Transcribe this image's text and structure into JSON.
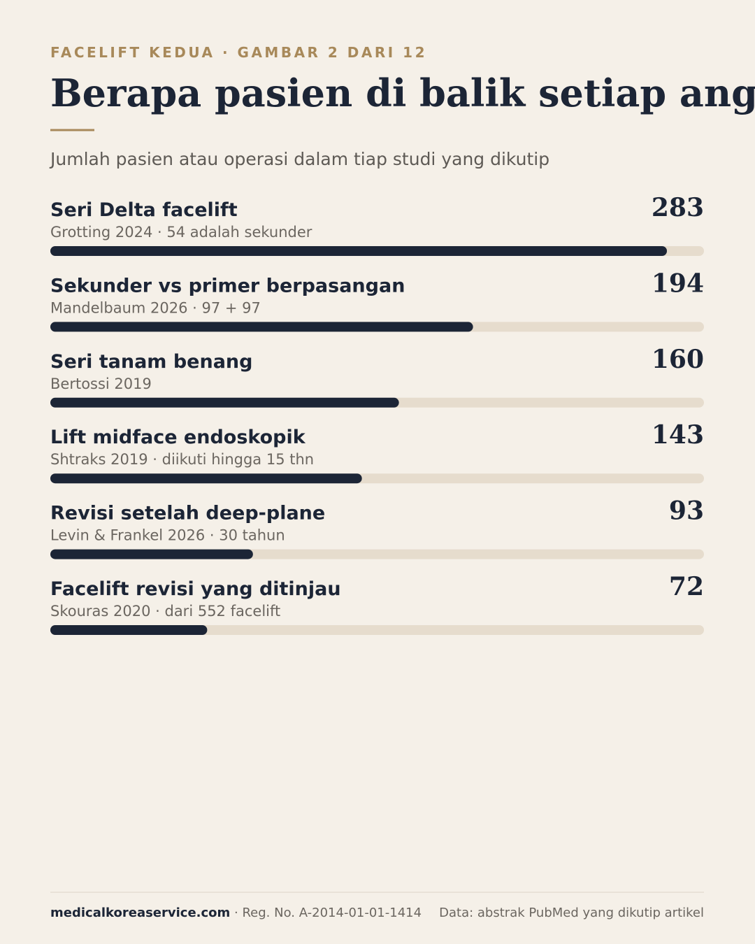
{
  "chart_data": {
    "type": "bar",
    "orientation": "horizontal",
    "eyebrow": "FACELIFT KEDUA · GAMBAR 2 DARI 12",
    "title": "Berapa pasien di balik setiap angka",
    "subtitle": "Jumlah pasien atau operasi dalam tiap studi yang dikutip",
    "categories": [
      "Seri Delta facelift",
      "Sekunder vs primer berpasangan",
      "Seri tanam benang",
      "Lift midface endoskopik",
      "Revisi setelah deep-plane",
      "Facelift revisi yang ditinjau"
    ],
    "notes": [
      "Grotting 2024 · 54 adalah sekunder",
      "Mandelbaum 2026 · 97 + 97",
      "Bertossi 2019",
      "Shtraks 2019 · diikuti hingga 15 thn",
      "Levin & Frankel 2026 · 30 tahun",
      "Skouras 2020 · dari 552 facelift"
    ],
    "values": [
      283,
      194,
      160,
      143,
      93,
      72
    ],
    "color": "#1c2536",
    "track_color": "#e6dccd",
    "xlim": [
      0,
      300
    ]
  },
  "footer": {
    "site": "medicalkoreaservice.com",
    "reg": " · Reg. No. A-2014-01-01-1414",
    "source": "Data: abstrak PubMed yang dikutip artikel"
  }
}
